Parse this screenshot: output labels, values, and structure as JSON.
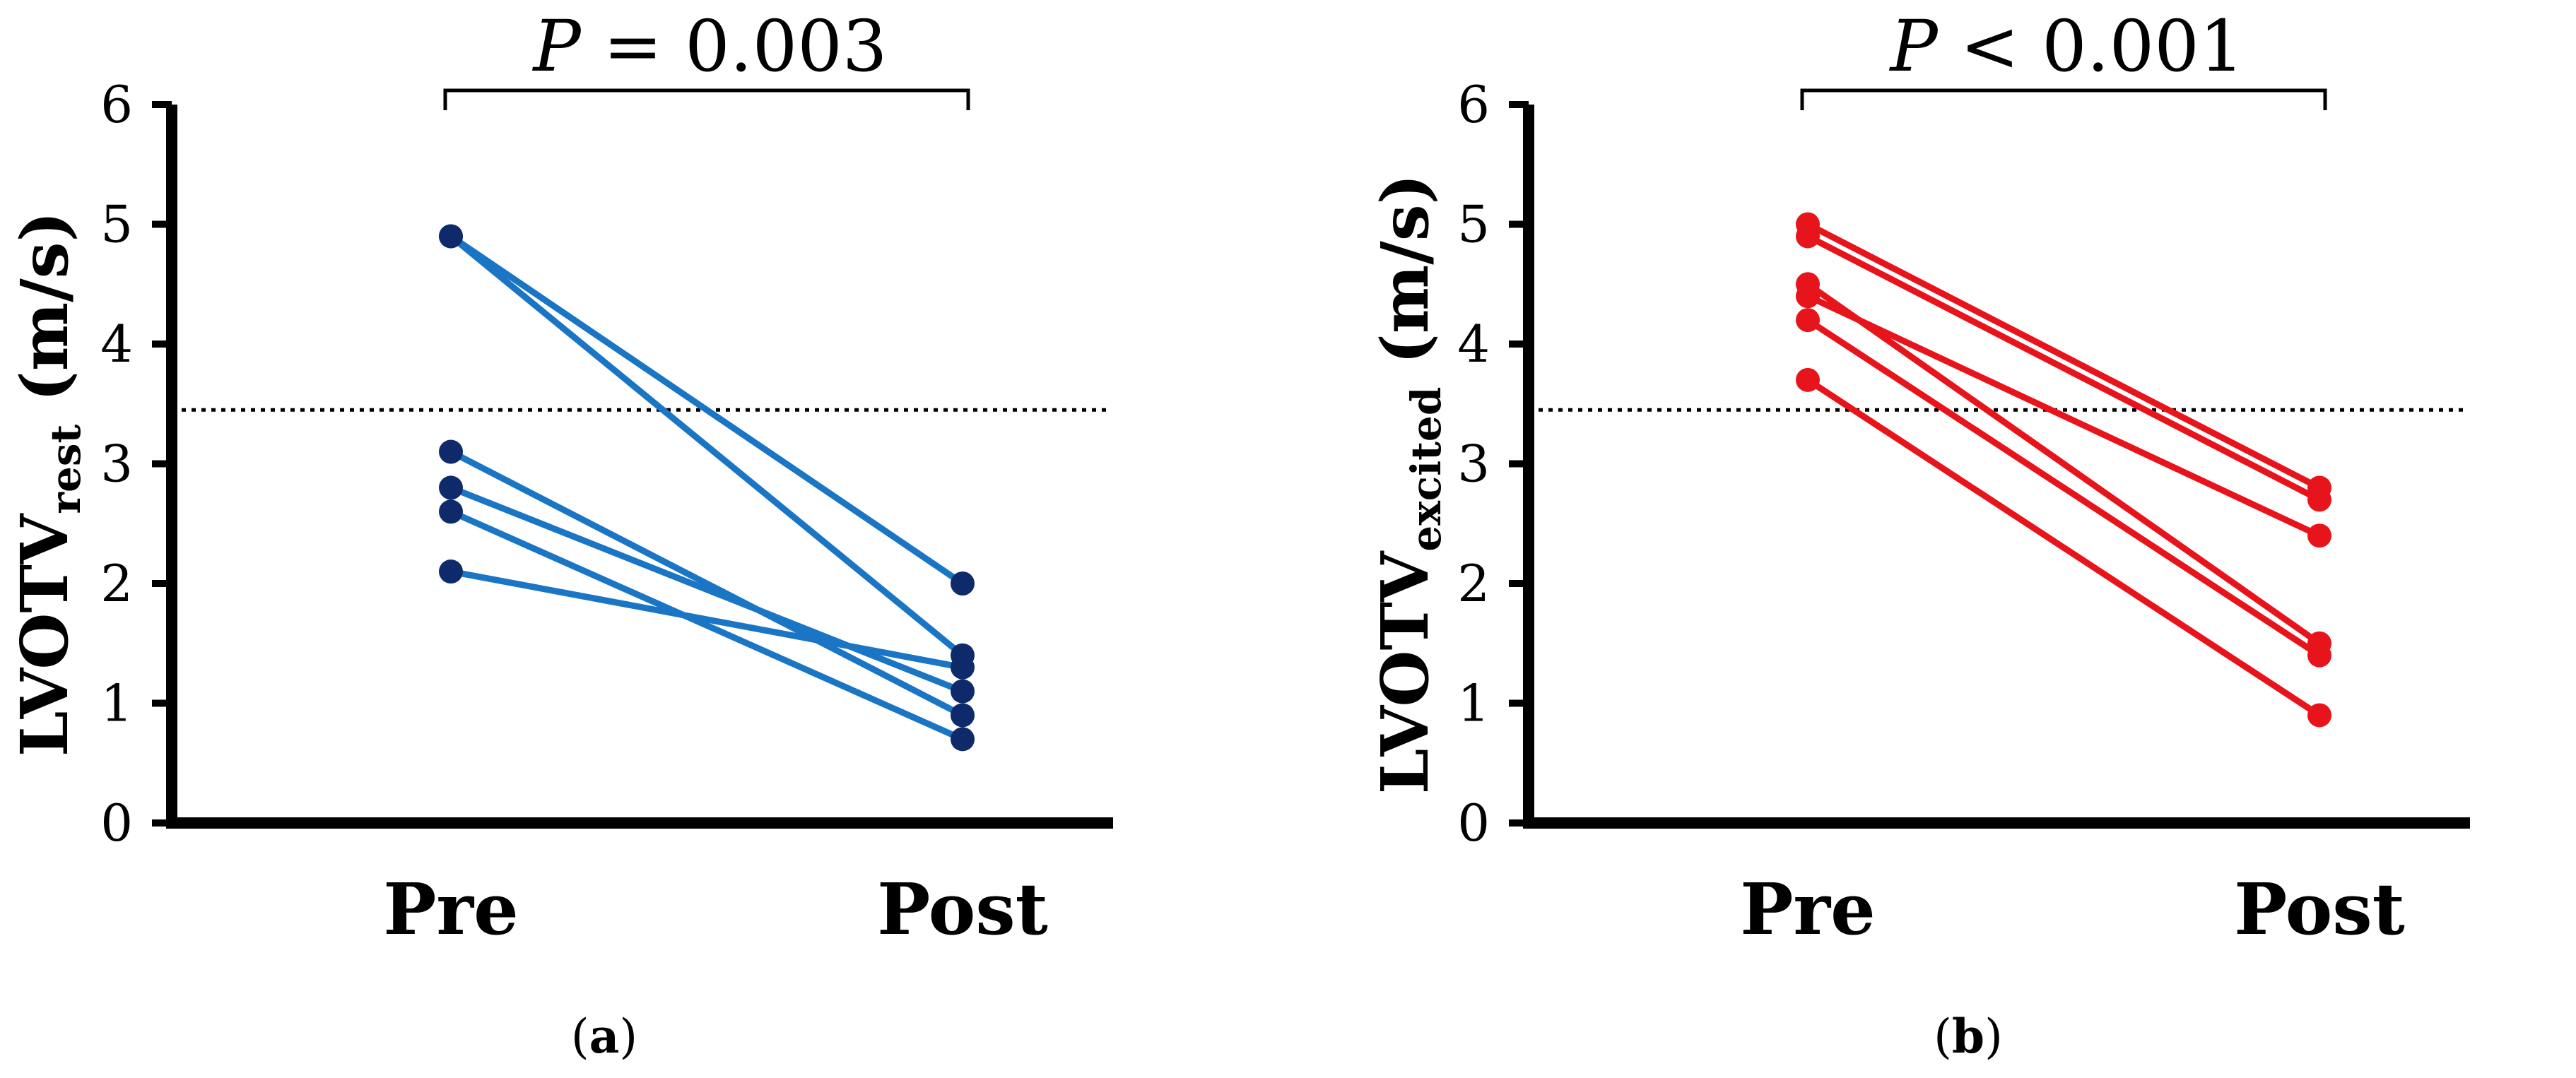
{
  "chart_data": [
    {
      "type": "line",
      "panel_label": "(a)",
      "panel_letter": "a",
      "ylabel_main": "LVOTV",
      "ylabel_sub": "rest",
      "ylabel_unit": " (m/s)",
      "x_labels": [
        "Pre",
        "Post"
      ],
      "ylim": [
        0,
        6
      ],
      "yticks": [
        "0",
        "1",
        "2",
        "3",
        "4",
        "5",
        "6"
      ],
      "reference_line_y": 3.45,
      "significance_p_symbol": "P",
      "significance_text": " = 0.003",
      "line_color": "#1a75c4",
      "marker_color": "#0f2a6b",
      "series": [
        {
          "values": [
            4.9,
            2.0
          ]
        },
        {
          "values": [
            4.9,
            1.4
          ]
        },
        {
          "values": [
            3.1,
            0.9
          ]
        },
        {
          "values": [
            2.8,
            1.1
          ]
        },
        {
          "values": [
            2.6,
            0.7
          ]
        },
        {
          "values": [
            2.1,
            1.3
          ]
        }
      ]
    },
    {
      "type": "line",
      "panel_label": "(b)",
      "panel_letter": "b",
      "ylabel_main": "LVOTV",
      "ylabel_sub": "excited",
      "ylabel_unit": " (m/s)",
      "x_labels": [
        "Pre",
        "Post"
      ],
      "ylim": [
        0,
        6
      ],
      "yticks": [
        "0",
        "1",
        "2",
        "3",
        "4",
        "5",
        "6"
      ],
      "reference_line_y": 3.45,
      "significance_p_symbol": "P",
      "significance_text": " < 0.001",
      "line_color": "#e8141c",
      "marker_color": "#e8141c",
      "series": [
        {
          "values": [
            5.0,
            2.8
          ]
        },
        {
          "values": [
            4.9,
            2.7
          ]
        },
        {
          "values": [
            4.5,
            1.5
          ]
        },
        {
          "values": [
            4.4,
            2.4
          ]
        },
        {
          "values": [
            4.2,
            1.4
          ]
        },
        {
          "values": [
            3.7,
            0.9
          ]
        }
      ]
    }
  ]
}
